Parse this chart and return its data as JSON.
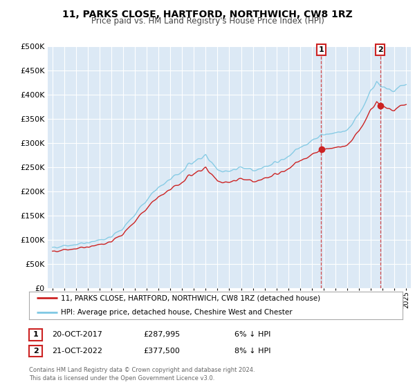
{
  "title": "11, PARKS CLOSE, HARTFORD, NORTHWICH, CW8 1RZ",
  "subtitle": "Price paid vs. HM Land Registry's House Price Index (HPI)",
  "legend_line1": "11, PARKS CLOSE, HARTFORD, NORTHWICH, CW8 1RZ (detached house)",
  "legend_line2": "HPI: Average price, detached house, Cheshire West and Chester",
  "sale1_label": "1",
  "sale1_date": "20-OCT-2017",
  "sale1_price": "£287,995",
  "sale1_hpi": "6% ↓ HPI",
  "sale2_label": "2",
  "sale2_date": "21-OCT-2022",
  "sale2_price": "£377,500",
  "sale2_hpi": "8% ↓ HPI",
  "footnote": "Contains HM Land Registry data © Crown copyright and database right 2024.\nThis data is licensed under the Open Government Licence v3.0.",
  "hpi_color": "#7ec8e3",
  "price_color": "#cc2222",
  "annotation_box_color": "#cc2222",
  "vline_color": "#cc2222",
  "plot_bg_color": "#dce9f5",
  "ylim": [
    0,
    500000
  ],
  "yticks": [
    0,
    50000,
    100000,
    150000,
    200000,
    250000,
    300000,
    350000,
    400000,
    450000,
    500000
  ],
  "sale1_year": 2017.8,
  "sale1_value": 287995,
  "sale2_year": 2022.8,
  "sale2_value": 377500
}
